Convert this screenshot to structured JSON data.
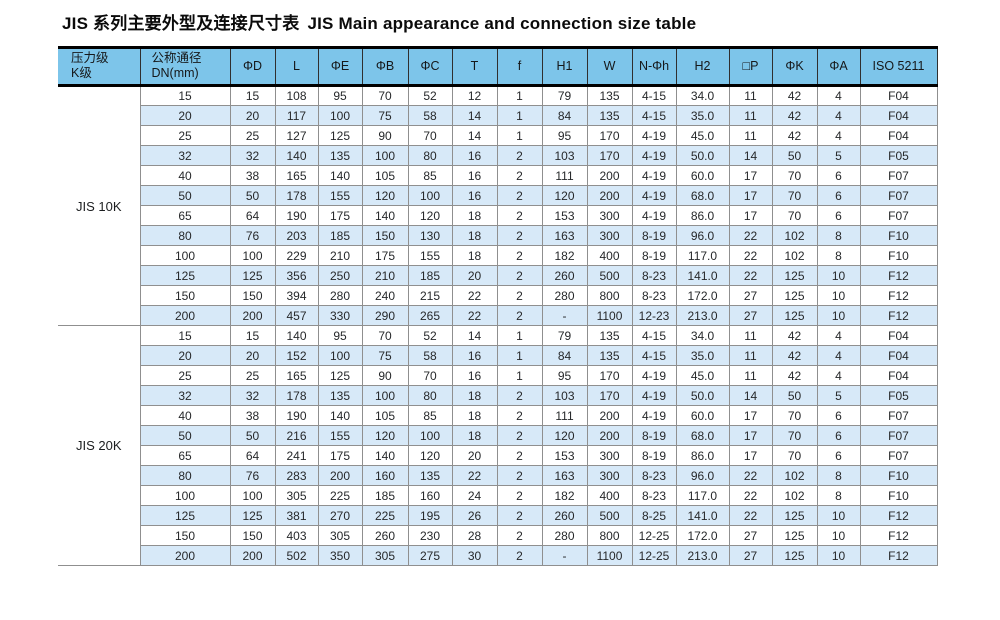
{
  "page": {
    "title_zh": "JIS 系列主要外型及连接尺寸表",
    "title_en": "JIS Main appearance and connection size table"
  },
  "colors": {
    "header_bg": "#7dc5ea",
    "band_row_bg": "#d7e9f8",
    "heavy_rule": "#000000",
    "grid_line": "#8f8f8f"
  },
  "table": {
    "columns": [
      "压力级\nK级",
      "公称通径\nDN(mm)",
      "ΦD",
      "L",
      "ΦE",
      "ΦB",
      "ΦC",
      "T",
      "f",
      "H1",
      "W",
      "N-Φh",
      "H2",
      "□P",
      "ΦK",
      "ΦA",
      "ISO 5211"
    ],
    "sections": [
      {
        "label": "JIS 10K",
        "rows": [
          [
            "15",
            "15",
            "108",
            "95",
            "70",
            "52",
            "12",
            "1",
            "79",
            "135",
            "4-15",
            "34.0",
            "11",
            "42",
            "4",
            "F04"
          ],
          [
            "20",
            "20",
            "117",
            "100",
            "75",
            "58",
            "14",
            "1",
            "84",
            "135",
            "4-15",
            "35.0",
            "11",
            "42",
            "4",
            "F04"
          ],
          [
            "25",
            "25",
            "127",
            "125",
            "90",
            "70",
            "14",
            "1",
            "95",
            "170",
            "4-19",
            "45.0",
            "11",
            "42",
            "4",
            "F04"
          ],
          [
            "32",
            "32",
            "140",
            "135",
            "100",
            "80",
            "16",
            "2",
            "103",
            "170",
            "4-19",
            "50.0",
            "14",
            "50",
            "5",
            "F05"
          ],
          [
            "40",
            "38",
            "165",
            "140",
            "105",
            "85",
            "16",
            "2",
            "111",
            "200",
            "4-19",
            "60.0",
            "17",
            "70",
            "6",
            "F07"
          ],
          [
            "50",
            "50",
            "178",
            "155",
            "120",
            "100",
            "16",
            "2",
            "120",
            "200",
            "4-19",
            "68.0",
            "17",
            "70",
            "6",
            "F07"
          ],
          [
            "65",
            "64",
            "190",
            "175",
            "140",
            "120",
            "18",
            "2",
            "153",
            "300",
            "4-19",
            "86.0",
            "17",
            "70",
            "6",
            "F07"
          ],
          [
            "80",
            "76",
            "203",
            "185",
            "150",
            "130",
            "18",
            "2",
            "163",
            "300",
            "8-19",
            "96.0",
            "22",
            "102",
            "8",
            "F10"
          ],
          [
            "100",
            "100",
            "229",
            "210",
            "175",
            "155",
            "18",
            "2",
            "182",
            "400",
            "8-19",
            "117.0",
            "22",
            "102",
            "8",
            "F10"
          ],
          [
            "125",
            "125",
            "356",
            "250",
            "210",
            "185",
            "20",
            "2",
            "260",
            "500",
            "8-23",
            "141.0",
            "22",
            "125",
            "10",
            "F12"
          ],
          [
            "150",
            "150",
            "394",
            "280",
            "240",
            "215",
            "22",
            "2",
            "280",
            "800",
            "8-23",
            "172.0",
            "27",
            "125",
            "10",
            "F12"
          ],
          [
            "200",
            "200",
            "457",
            "330",
            "290",
            "265",
            "22",
            "2",
            "-",
            "1100",
            "12-23",
            "213.0",
            "27",
            "125",
            "10",
            "F12"
          ]
        ]
      },
      {
        "label": "JIS 20K",
        "rows": [
          [
            "15",
            "15",
            "140",
            "95",
            "70",
            "52",
            "14",
            "1",
            "79",
            "135",
            "4-15",
            "34.0",
            "11",
            "42",
            "4",
            "F04"
          ],
          [
            "20",
            "20",
            "152",
            "100",
            "75",
            "58",
            "16",
            "1",
            "84",
            "135",
            "4-15",
            "35.0",
            "11",
            "42",
            "4",
            "F04"
          ],
          [
            "25",
            "25",
            "165",
            "125",
            "90",
            "70",
            "16",
            "1",
            "95",
            "170",
            "4-19",
            "45.0",
            "11",
            "42",
            "4",
            "F04"
          ],
          [
            "32",
            "32",
            "178",
            "135",
            "100",
            "80",
            "18",
            "2",
            "103",
            "170",
            "4-19",
            "50.0",
            "14",
            "50",
            "5",
            "F05"
          ],
          [
            "40",
            "38",
            "190",
            "140",
            "105",
            "85",
            "18",
            "2",
            "111",
            "200",
            "4-19",
            "60.0",
            "17",
            "70",
            "6",
            "F07"
          ],
          [
            "50",
            "50",
            "216",
            "155",
            "120",
            "100",
            "18",
            "2",
            "120",
            "200",
            "8-19",
            "68.0",
            "17",
            "70",
            "6",
            "F07"
          ],
          [
            "65",
            "64",
            "241",
            "175",
            "140",
            "120",
            "20",
            "2",
            "153",
            "300",
            "8-19",
            "86.0",
            "17",
            "70",
            "6",
            "F07"
          ],
          [
            "80",
            "76",
            "283",
            "200",
            "160",
            "135",
            "22",
            "2",
            "163",
            "300",
            "8-23",
            "96.0",
            "22",
            "102",
            "8",
            "F10"
          ],
          [
            "100",
            "100",
            "305",
            "225",
            "185",
            "160",
            "24",
            "2",
            "182",
            "400",
            "8-23",
            "117.0",
            "22",
            "102",
            "8",
            "F10"
          ],
          [
            "125",
            "125",
            "381",
            "270",
            "225",
            "195",
            "26",
            "2",
            "260",
            "500",
            "8-25",
            "141.0",
            "22",
            "125",
            "10",
            "F12"
          ],
          [
            "150",
            "150",
            "403",
            "305",
            "260",
            "230",
            "28",
            "2",
            "280",
            "800",
            "12-25",
            "172.0",
            "27",
            "125",
            "10",
            "F12"
          ],
          [
            "200",
            "200",
            "502",
            "350",
            "305",
            "275",
            "30",
            "2",
            "-",
            "1100",
            "12-25",
            "213.0",
            "27",
            "125",
            "10",
            "F12"
          ]
        ]
      }
    ]
  }
}
